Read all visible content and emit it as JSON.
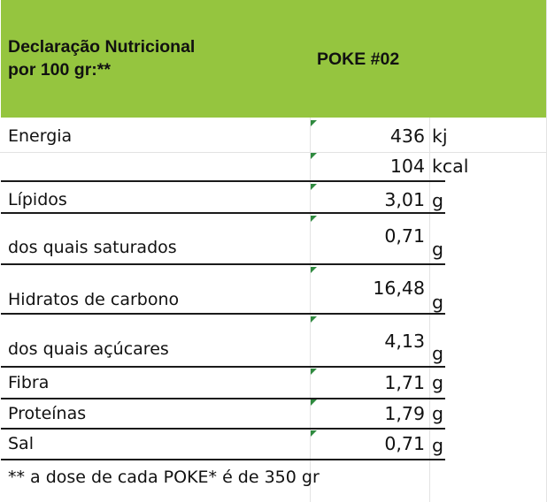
{
  "header": {
    "title_line1": "Declaração Nutricional",
    "title_line2": "por 100 gr:**",
    "column": "POKE #02"
  },
  "rows": [
    {
      "label": "Energia",
      "value": "436",
      "unit": "kj"
    },
    {
      "label": "",
      "value": "104",
      "unit": "kcal"
    },
    {
      "label": "Lípidos",
      "value": "3,01",
      "unit": "g"
    },
    {
      "label": "dos quais saturados",
      "value": "0,71",
      "unit": "g"
    },
    {
      "label": "Hidratos de carbono",
      "value": "16,48",
      "unit": "g"
    },
    {
      "label": "dos quais açúcares",
      "value": "4,13",
      "unit": "g"
    },
    {
      "label": "Fibra",
      "value": "1,71",
      "unit": "g"
    },
    {
      "label": "Proteínas",
      "value": "1,79",
      "unit": "g"
    },
    {
      "label": "Sal",
      "value": "0,71",
      "unit": "g"
    }
  ],
  "footnote": "** a dose de cada POKE* é de 350 gr",
  "colors": {
    "header_bg": "#95c53f",
    "flag": "#2f8a3f"
  }
}
